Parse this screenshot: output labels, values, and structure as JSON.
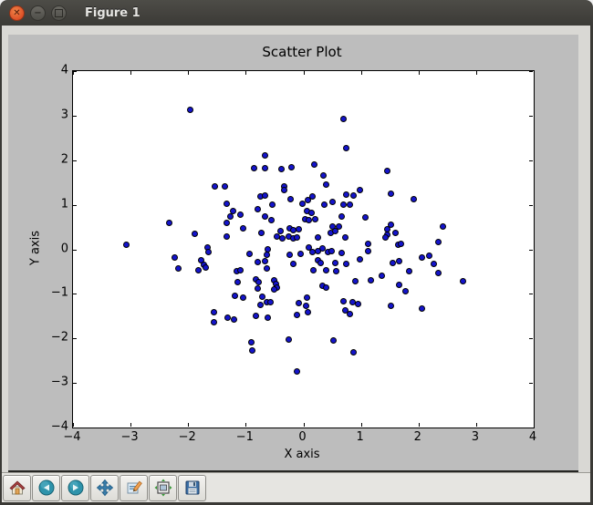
{
  "window": {
    "title": "Figure 1",
    "controls": {
      "close_glyph": "✕",
      "minimize_glyph": "−"
    }
  },
  "chart_data": {
    "type": "scatter",
    "title": "Scatter Plot",
    "xlabel": "X axis",
    "ylabel": "Y axis",
    "xlim": [
      -4,
      4
    ],
    "ylim": [
      -4,
      4
    ],
    "xticks": [
      -4,
      -3,
      -2,
      -1,
      0,
      1,
      2,
      3,
      4
    ],
    "yticks": [
      -4,
      -3,
      -2,
      -1,
      0,
      1,
      2,
      3,
      4
    ],
    "grid": false,
    "marker_color": "#1414cc",
    "marker_edge_color": "#000000",
    "background_color": "#ffffff",
    "figure_color": "#bdbdbd",
    "points": [
      [
        -1.97,
        3.13
      ],
      [
        -1.53,
        1.41
      ],
      [
        -1.36,
        1.41
      ],
      [
        -1.33,
        1.03
      ],
      [
        -2.33,
        0.59
      ],
      [
        -1.89,
        0.34
      ],
      [
        -1.33,
        0.59
      ],
      [
        -3.08,
        0.11
      ],
      [
        -1.67,
        0.05
      ],
      [
        0.69,
        2.93
      ],
      [
        0.74,
        2.28
      ],
      [
        -0.66,
        2.11
      ],
      [
        -0.86,
        1.82
      ],
      [
        -0.66,
        1.83
      ],
      [
        -0.38,
        1.8
      ],
      [
        -0.2,
        1.85
      ],
      [
        0.19,
        1.9
      ],
      [
        0.35,
        1.65
      ],
      [
        0.39,
        1.46
      ],
      [
        -0.34,
        1.42
      ],
      [
        -0.33,
        1.34
      ],
      [
        0.99,
        1.33
      ],
      [
        0.75,
        1.22
      ],
      [
        0.87,
        1.2
      ],
      [
        -0.74,
        1.19
      ],
      [
        -0.66,
        1.2
      ],
      [
        -0.22,
        1.12
      ],
      [
        0.16,
        1.19
      ],
      [
        0.08,
        1.1
      ],
      [
        -0.02,
        1.03
      ],
      [
        0.37,
        1.0
      ],
      [
        0.51,
        1.07
      ],
      [
        0.69,
        1.0
      ],
      [
        0.8,
        1.01
      ],
      [
        -0.54,
        1.0
      ],
      [
        -0.8,
        0.9
      ],
      [
        -1.22,
        0.85
      ],
      [
        -1.09,
        0.78
      ],
      [
        -0.66,
        0.74
      ],
      [
        -0.56,
        0.66
      ],
      [
        0.06,
        0.86
      ],
      [
        0.14,
        0.81
      ],
      [
        0.03,
        0.68
      ],
      [
        0.1,
        0.65
      ],
      [
        0.21,
        0.68
      ],
      [
        0.51,
        0.51
      ],
      [
        0.62,
        0.52
      ],
      [
        0.67,
        0.74
      ],
      [
        1.07,
        0.71
      ],
      [
        -1.04,
        0.47
      ],
      [
        -1.26,
        0.73
      ],
      [
        -1.33,
        0.28
      ],
      [
        -0.73,
        0.36
      ],
      [
        -0.46,
        0.29
      ],
      [
        -0.4,
        0.4
      ],
      [
        -0.36,
        0.24
      ],
      [
        -0.23,
        0.47
      ],
      [
        -0.18,
        0.43
      ],
      [
        -0.08,
        0.46
      ],
      [
        -0.26,
        0.28
      ],
      [
        -0.18,
        0.25
      ],
      [
        -0.11,
        0.26
      ],
      [
        0.26,
        0.26
      ],
      [
        0.47,
        0.36
      ],
      [
        0.55,
        0.4
      ],
      [
        0.73,
        0.26
      ],
      [
        1.12,
        0.13
      ],
      [
        0.09,
        0.04
      ],
      [
        0.33,
        0.02
      ],
      [
        1.46,
        1.75
      ],
      [
        1.52,
        1.25
      ],
      [
        1.91,
        1.12
      ],
      [
        1.52,
        0.56
      ],
      [
        1.46,
        0.44
      ],
      [
        1.46,
        0.33
      ],
      [
        1.6,
        0.37
      ],
      [
        1.43,
        0.26
      ],
      [
        2.42,
        0.51
      ],
      [
        2.34,
        0.16
      ],
      [
        1.64,
        0.1
      ],
      [
        1.69,
        0.13
      ],
      [
        -2.23,
        -0.19
      ],
      [
        -2.17,
        -0.42
      ],
      [
        -1.64,
        -0.06
      ],
      [
        -1.78,
        -0.24
      ],
      [
        -1.72,
        -0.35
      ],
      [
        -1.69,
        -0.4
      ],
      [
        -1.82,
        -0.47
      ],
      [
        -1.56,
        -1.41
      ],
      [
        -1.56,
        -1.63
      ],
      [
        -0.94,
        -0.11
      ],
      [
        -0.62,
        -0.01
      ],
      [
        -0.64,
        -0.13
      ],
      [
        -0.79,
        -0.28
      ],
      [
        -0.66,
        -0.27
      ],
      [
        -0.64,
        -0.42
      ],
      [
        -0.23,
        -0.13
      ],
      [
        -0.05,
        -0.11
      ],
      [
        -0.18,
        -0.32
      ],
      [
        0.16,
        -0.07
      ],
      [
        0.25,
        -0.04
      ],
      [
        0.43,
        -0.07
      ],
      [
        0.49,
        -0.04
      ],
      [
        0.25,
        -0.25
      ],
      [
        0.3,
        -0.3
      ],
      [
        0.67,
        -0.09
      ],
      [
        0.55,
        -0.3
      ],
      [
        0.74,
        -0.32
      ],
      [
        0.17,
        -0.47
      ],
      [
        0.39,
        -0.47
      ],
      [
        0.57,
        -0.5
      ],
      [
        0.98,
        -0.23
      ],
      [
        1.13,
        -0.04
      ],
      [
        0.9,
        -0.71
      ],
      [
        1.18,
        -0.69
      ],
      [
        1.37,
        -0.6
      ],
      [
        -1.16,
        -0.5
      ],
      [
        -1.1,
        -0.47
      ],
      [
        -1.14,
        -0.73
      ],
      [
        -0.83,
        -0.68
      ],
      [
        -0.78,
        -0.73
      ],
      [
        -0.79,
        -0.88
      ],
      [
        -0.51,
        -0.69
      ],
      [
        -0.48,
        -0.77
      ],
      [
        -0.46,
        -0.86
      ],
      [
        -0.5,
        -0.9
      ],
      [
        0.34,
        -0.81
      ],
      [
        0.39,
        -0.86
      ],
      [
        -1.19,
        -1.05
      ],
      [
        -1.04,
        -1.09
      ],
      [
        -0.71,
        -1.07
      ],
      [
        -0.63,
        -1.18
      ],
      [
        -0.57,
        -1.18
      ],
      [
        -0.74,
        -1.25
      ],
      [
        0.06,
        -1.09
      ],
      [
        -0.08,
        -1.2
      ],
      [
        0.05,
        -1.27
      ],
      [
        0.08,
        -1.41
      ],
      [
        -0.11,
        -1.48
      ],
      [
        0.69,
        -1.17
      ],
      [
        0.86,
        -1.18
      ],
      [
        0.73,
        -1.37
      ],
      [
        0.8,
        -1.46
      ],
      [
        0.95,
        -1.22
      ],
      [
        -1.21,
        -1.57
      ],
      [
        -0.83,
        -1.5
      ],
      [
        -0.62,
        -1.54
      ],
      [
        -1.31,
        -1.54
      ],
      [
        -0.25,
        -2.02
      ],
      [
        -0.9,
        -2.09
      ],
      [
        -0.89,
        -2.27
      ],
      [
        0.53,
        -2.04
      ],
      [
        0.87,
        -2.32
      ],
      [
        -0.11,
        -2.75
      ],
      [
        1.55,
        -0.3
      ],
      [
        1.66,
        -0.27
      ],
      [
        2.06,
        -0.18
      ],
      [
        2.18,
        -0.15
      ],
      [
        2.26,
        -0.32
      ],
      [
        1.83,
        -0.49
      ],
      [
        2.35,
        -0.54
      ],
      [
        1.66,
        -0.79
      ],
      [
        1.78,
        -0.95
      ],
      [
        2.77,
        -0.71
      ],
      [
        1.52,
        -1.27
      ],
      [
        2.06,
        -1.32
      ]
    ]
  },
  "toolbar": {
    "buttons": [
      "home",
      "back",
      "forward",
      "pan",
      "zoom",
      "subplots",
      "save"
    ]
  },
  "colors": {
    "titlebar": "#3b3a36",
    "close_button": "#dd5027",
    "window_body": "#d9d8d4",
    "toolbar_bg": "#e6e5e1"
  }
}
